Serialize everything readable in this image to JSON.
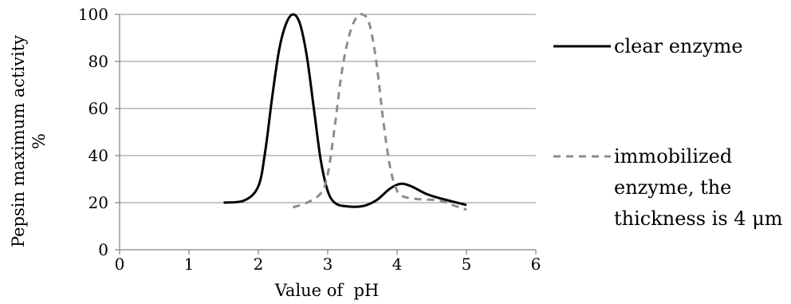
{
  "chart_data": {
    "type": "line",
    "title": "",
    "xlabel": "Value of  pH",
    "ylabel_lines": [
      "Pepsin maximum activity",
      "%"
    ],
    "xlim": [
      0,
      6
    ],
    "ylim": [
      0,
      100
    ],
    "xticks": [
      0,
      1,
      2,
      3,
      4,
      5,
      6
    ],
    "yticks": [
      0,
      20,
      40,
      60,
      80,
      100
    ],
    "grid": "horizontal",
    "legend_position": "right",
    "series": [
      {
        "name": "clear enzyme",
        "style": "solid",
        "color": "#000000",
        "points": [
          [
            1.5,
            20
          ],
          [
            1.8,
            21
          ],
          [
            2.0,
            27
          ],
          [
            2.1,
            42
          ],
          [
            2.2,
            65
          ],
          [
            2.3,
            85
          ],
          [
            2.4,
            96
          ],
          [
            2.5,
            100
          ],
          [
            2.6,
            96
          ],
          [
            2.7,
            82
          ],
          [
            2.8,
            60
          ],
          [
            2.9,
            38
          ],
          [
            3.0,
            25
          ],
          [
            3.1,
            20
          ],
          [
            3.25,
            18.5
          ],
          [
            3.5,
            18.5
          ],
          [
            3.7,
            21
          ],
          [
            3.9,
            26
          ],
          [
            4.05,
            28
          ],
          [
            4.2,
            27
          ],
          [
            4.4,
            24
          ],
          [
            4.6,
            22
          ],
          [
            5.0,
            19
          ]
        ]
      },
      {
        "name_lines": [
          "immobilized",
          "enzyme, the",
          "thickness is 4 μm"
        ],
        "style": "dashed",
        "color": "#8c8c8c",
        "points": [
          [
            2.5,
            18
          ],
          [
            2.7,
            20
          ],
          [
            2.9,
            24
          ],
          [
            3.0,
            32
          ],
          [
            3.1,
            52
          ],
          [
            3.2,
            75
          ],
          [
            3.3,
            90
          ],
          [
            3.4,
            98
          ],
          [
            3.5,
            100
          ],
          [
            3.6,
            96
          ],
          [
            3.7,
            80
          ],
          [
            3.8,
            55
          ],
          [
            3.9,
            35
          ],
          [
            4.0,
            25
          ],
          [
            4.1,
            22.5
          ],
          [
            4.3,
            21.5
          ],
          [
            4.6,
            21
          ],
          [
            4.8,
            19
          ],
          [
            5.0,
            17
          ]
        ]
      }
    ]
  }
}
